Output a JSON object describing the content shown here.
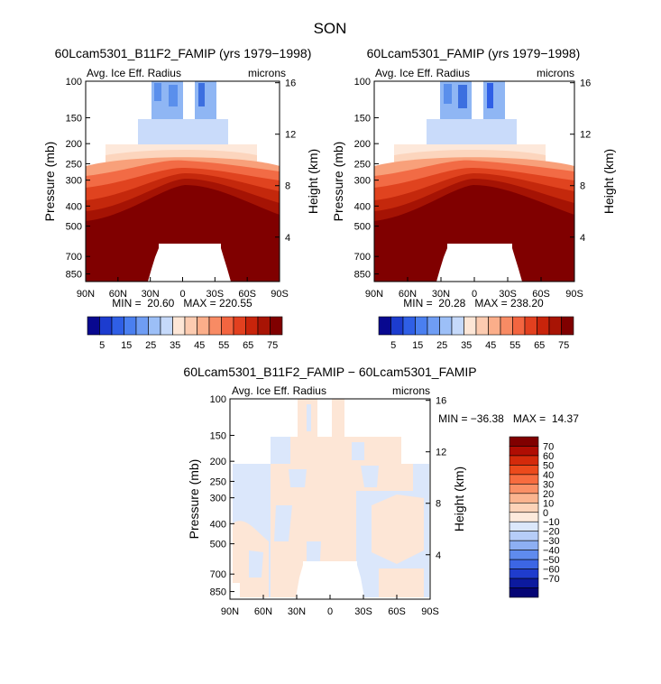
{
  "figure": {
    "title": "SON"
  },
  "chart_data": [
    {
      "type": "heatmap",
      "id": "p1",
      "title": "60Lcam5301_B11F2_FAMIP (yrs 1979−1998)",
      "subtitle_left": "Avg. Ice Eff. Radius",
      "subtitle_right": "microns",
      "ylabel": "Pressure (mb)",
      "ylabel_right": "Height (km)",
      "x_ticks": [
        "90N",
        "60N",
        "30N",
        "0",
        "30S",
        "60S",
        "90S"
      ],
      "x_values": [
        90,
        60,
        30,
        0,
        -30,
        -60,
        -90
      ],
      "y_ticks": [
        "100",
        "150",
        "200",
        "250",
        "300",
        "400",
        "500",
        "700",
        "850"
      ],
      "y_values": [
        100,
        150,
        200,
        250,
        300,
        400,
        500,
        700,
        850
      ],
      "height_ticks": [
        "16",
        "12",
        "8",
        "4"
      ],
      "height_values": [
        16,
        12,
        8,
        4
      ],
      "ylim": [
        100,
        925
      ],
      "stats_text": "MIN =  20.60   MAX = 220.55",
      "min": 20.6,
      "max": 220.55
    },
    {
      "type": "heatmap",
      "id": "p2",
      "title": "60Lcam5301_FAMIP (yrs 1979−1998)",
      "subtitle_left": "Avg. Ice Eff. Radius",
      "subtitle_right": "microns",
      "ylabel": "Pressure (mb)",
      "ylabel_right": "Height (km)",
      "x_ticks": [
        "90N",
        "60N",
        "30N",
        "0",
        "30S",
        "60S",
        "90S"
      ],
      "x_values": [
        90,
        60,
        30,
        0,
        -30,
        -60,
        -90
      ],
      "y_ticks": [
        "100",
        "150",
        "200",
        "250",
        "300",
        "400",
        "500",
        "700",
        "850"
      ],
      "y_values": [
        100,
        150,
        200,
        250,
        300,
        400,
        500,
        700,
        850
      ],
      "height_ticks": [
        "16",
        "12",
        "8",
        "4"
      ],
      "height_values": [
        16,
        12,
        8,
        4
      ],
      "ylim": [
        100,
        925
      ],
      "stats_text": "MIN =  20.28   MAX = 238.20",
      "min": 20.28,
      "max": 238.2
    },
    {
      "type": "heatmap",
      "id": "p3",
      "title": "60Lcam5301_B11F2_FAMIP − 60Lcam5301_FAMIP",
      "subtitle_left": "Avg. Ice Eff. Radius",
      "subtitle_right": "microns",
      "ylabel": "Pressure (mb)",
      "ylabel_right": "Height (km)",
      "x_ticks": [
        "90N",
        "60N",
        "30N",
        "0",
        "30S",
        "60S",
        "90S"
      ],
      "x_values": [
        90,
        60,
        30,
        0,
        -30,
        -60,
        -90
      ],
      "y_ticks": [
        "100",
        "150",
        "200",
        "250",
        "300",
        "400",
        "500",
        "700",
        "850"
      ],
      "y_values": [
        100,
        150,
        200,
        250,
        300,
        400,
        500,
        700,
        850
      ],
      "height_ticks": [
        "16",
        "12",
        "8",
        "4"
      ],
      "height_values": [
        16,
        12,
        8,
        4
      ],
      "ylim": [
        100,
        925
      ],
      "stats_text": "MIN = −36.38   MAX =  14.37",
      "min": -36.38,
      "max": 14.37
    }
  ],
  "colorbar_abs": {
    "labels": [
      "5",
      "15",
      "25",
      "35",
      "45",
      "55",
      "65",
      "75"
    ],
    "colors": [
      "#08088f",
      "#1c3ccf",
      "#2f5fe6",
      "#4a7ff0",
      "#6f9df4",
      "#9cbff7",
      "#c5d9fa",
      "#fde6d6",
      "#fccbb0",
      "#fbae8a",
      "#f88b64",
      "#f36540",
      "#e2401f",
      "#c8240b",
      "#a81405",
      "#800000"
    ]
  },
  "colorbar_diff": {
    "labels": [
      "70",
      "60",
      "50",
      "40",
      "30",
      "20",
      "10",
      "0",
      "−10",
      "−20",
      "−30",
      "−40",
      "−50",
      "−60",
      "−70"
    ],
    "colors": [
      "#800000",
      "#b00d03",
      "#d42a0b",
      "#ec4a1c",
      "#f76c3f",
      "#fa9066",
      "#fbb48f",
      "#fdd3b8",
      "#fdeadc",
      "#dbe7fb",
      "#b6cdf8",
      "#8daff3",
      "#5f8bee",
      "#3c66e4",
      "#1f3ccd",
      "#0c1a9e",
      "#050575"
    ]
  }
}
